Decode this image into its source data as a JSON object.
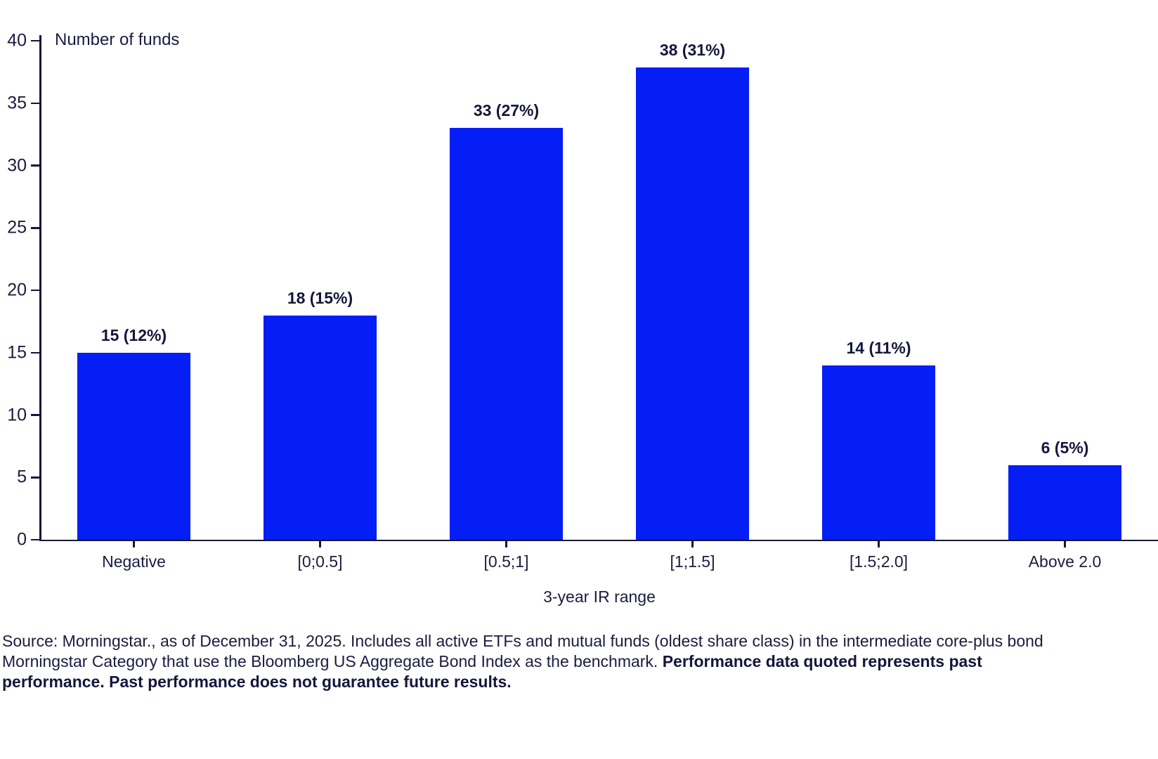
{
  "chart_data": {
    "type": "bar",
    "title": "",
    "ylabel": "Number of funds",
    "xlabel": "3-year IR range",
    "categories": [
      "Negative",
      "[0;0.5]",
      "[0.5;1]",
      "[1;1.5]",
      "[1.5;2.0]",
      "Above 2.0"
    ],
    "values": [
      15,
      18,
      33,
      38,
      14,
      6
    ],
    "bar_labels": [
      "15 (12%)",
      "18 (15%)",
      "33 (27%)",
      "38 (31%)",
      "14 (11%)",
      "6 (5%)"
    ],
    "percentages": [
      12,
      15,
      27,
      31,
      11,
      5
    ],
    "ylim": [
      0,
      40
    ],
    "yticks": [
      0,
      5,
      10,
      15,
      20,
      25,
      30,
      35,
      40
    ],
    "grid": false,
    "legend_position": "none"
  },
  "colors": {
    "bar": "#041EF5",
    "axis": "#14163A",
    "text": "#1A1C3F"
  },
  "footer": {
    "source_regular": "Source: Morningstar., as of December 31, 2025. Includes all active ETFs and mutual funds (oldest share class) in the intermediate core-plus bond Morningstar Category that use the Bloomberg US Aggregate Bond Index as the benchmark. ",
    "source_bold": "Performance data quoted represents past performance. Past performance does not guarantee future results."
  }
}
